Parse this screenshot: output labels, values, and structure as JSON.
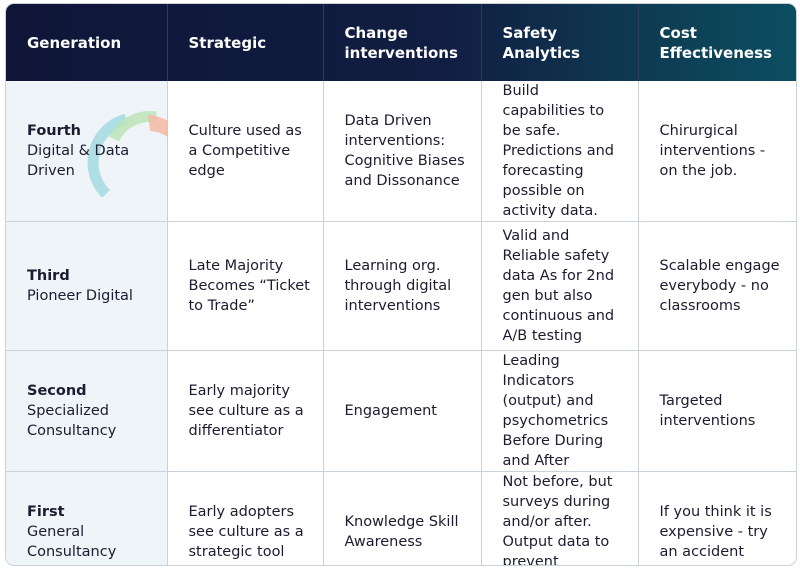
{
  "table": {
    "header": [
      "Generation",
      "Strategic",
      "Change interventions",
      "Safety Analytics",
      "Cost Effectiveness"
    ],
    "rows": [
      {
        "level": "Fourth",
        "name": "Digital & Data Driven",
        "cells": [
          "Culture used as a Competitive edge",
          "Data Driven interventions: Cognitive Biases and Dissonance",
          "Build capabilities to be safe. Predictions and forecasting possible on activity data.",
          "Chirurgical interventions - on the job."
        ]
      },
      {
        "level": "Third",
        "name": "Pioneer Digital",
        "cells": [
          "Late Majority Becomes “Ticket to Trade”",
          "Learning org. through digital interventions",
          "Valid and Reliable safety data As for 2nd gen but also continuous and A/B testing",
          "Scalable engage everybody - no classrooms"
        ]
      },
      {
        "level": "Second",
        "name": "Specialized Consultancy",
        "cells": [
          "Early majority see culture as a differentiator",
          "Engagement",
          "Leading Indicators (output) and psychometrics Before During and After",
          "Targeted interventions"
        ]
      },
      {
        "level": "First",
        "name": "General Consultancy",
        "cells": [
          "Early adopters see culture as a strategic tool",
          "Knowledge Skill Awareness",
          "Not before, but surveys during and/or after. Output data to prevent accidents.",
          "If you think it is expensive - try an accident"
        ]
      }
    ]
  }
}
